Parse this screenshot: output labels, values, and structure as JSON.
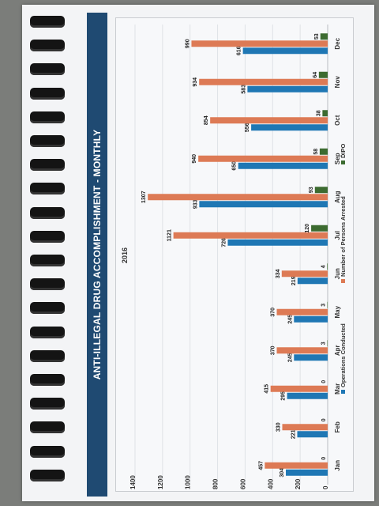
{
  "title": "ANTI-ILLEGAL DRUG ACCOMPLISHMENT - MONTHLY",
  "colors": {
    "page": "#f3f4f6",
    "title_band": "#1f4a72",
    "operations": "#1f77b4",
    "arrested": "#dd7a55",
    "dipo": "#3c6b30"
  },
  "chart_data": {
    "type": "bar",
    "title": "2016",
    "xlabel": "",
    "ylabel": "",
    "categories": [
      "Jan",
      "Feb",
      "Mar",
      "Apr",
      "May",
      "Jun",
      "Jul",
      "Aug",
      "Sep",
      "Oct",
      "Nov",
      "Dec"
    ],
    "series": [
      {
        "name": "Operations Conducted",
        "values": [
          304,
          221,
          295,
          245,
          245,
          219,
          726,
          933,
          650,
          556,
          583,
          616
        ]
      },
      {
        "name": "Number of Persons Arrested",
        "values": [
          457,
          330,
          415,
          370,
          370,
          334,
          1121,
          1307,
          940,
          854,
          934,
          990
        ]
      },
      {
        "name": "DIPO",
        "values": [
          0,
          0,
          0,
          3,
          3,
          4,
          120,
          93,
          58,
          38,
          64,
          53
        ]
      }
    ],
    "ylim": [
      0,
      1400
    ],
    "yticks": [
      0,
      200,
      400,
      600,
      800,
      1000,
      1200,
      1400
    ],
    "grid": true,
    "legend_position": "bottom"
  }
}
